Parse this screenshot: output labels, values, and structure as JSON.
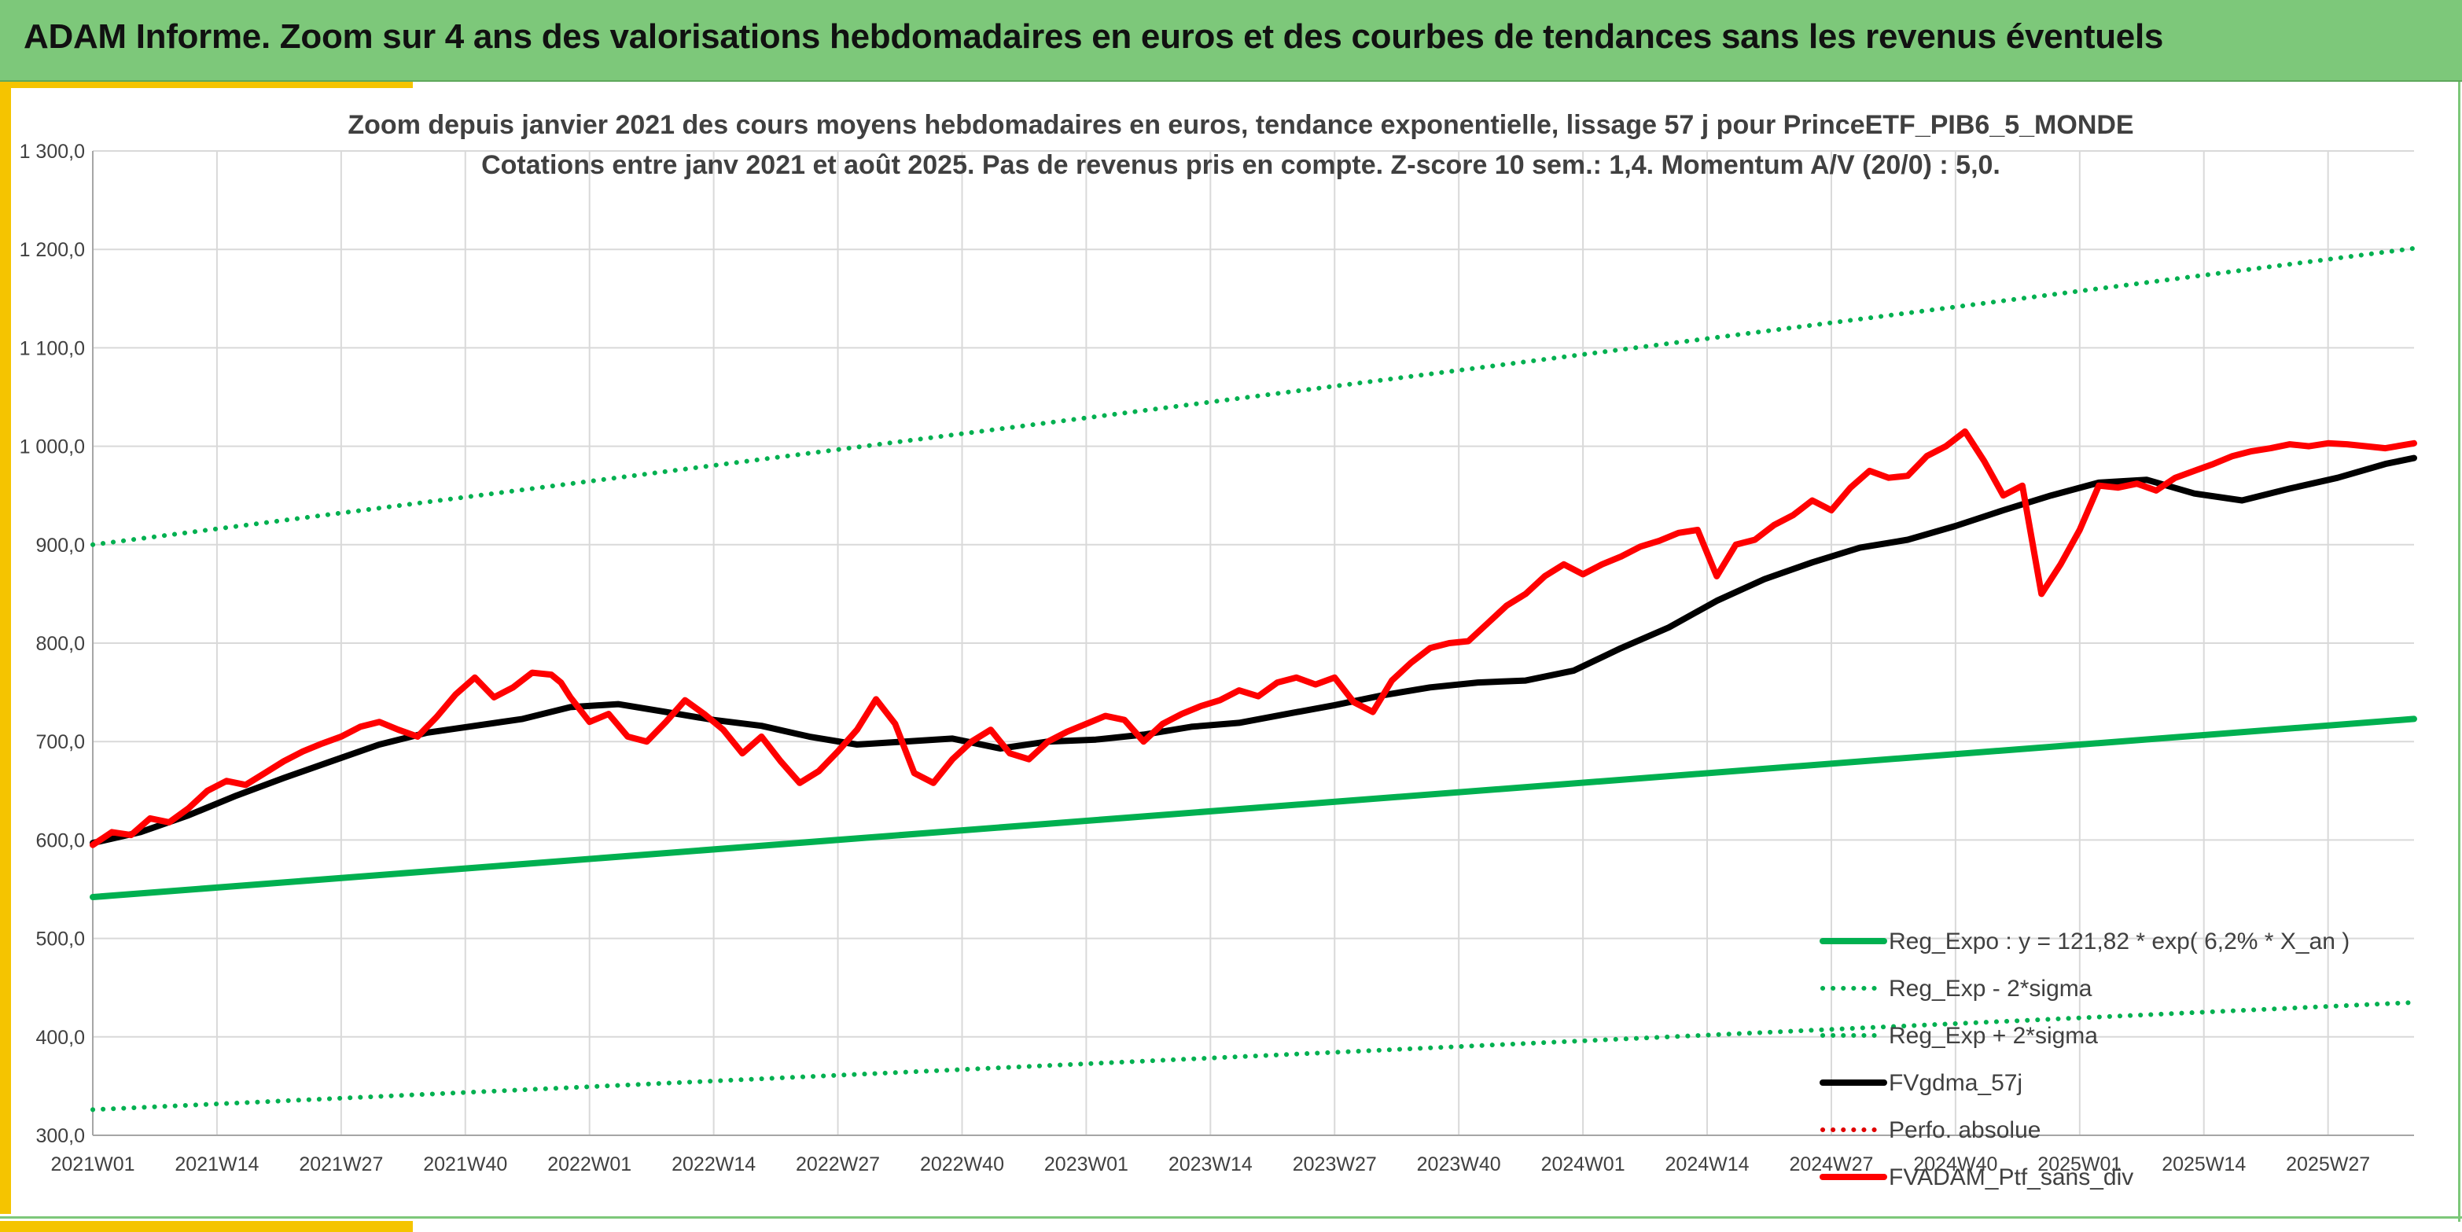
{
  "banner": {
    "title": "ADAM Informe. Zoom sur 4 ans des valorisations hebdomadaires en euros et des courbes de tendances sans les revenus éventuels"
  },
  "colors": {
    "banner_bg": "#7dc87a",
    "frame_accent": "#f5c400",
    "reg_expo": "#00b050",
    "fvgdma": "#000000",
    "perfo": "#e00000",
    "fvadam": "#ff0000",
    "grid": "#d9d9d9"
  },
  "chart_data": {
    "type": "line",
    "title": "Zoom depuis janvier 2021 des cours moyens hebdomadaires en euros, tendance exponentielle, lissage 57 j pour PrinceETF_PIB6_5_MONDE",
    "subtitle": "Cotations entre janv 2021 et août 2025. Pas de revenus pris en compte. Z-score 10 sem.: 1,4. Momentum A/V (20/0) : 5,0.",
    "xlabel": "",
    "ylabel": "",
    "ylim": [
      300,
      1300
    ],
    "yticks": [
      300,
      400,
      500,
      600,
      700,
      800,
      900,
      1000,
      1100,
      1200,
      1300
    ],
    "ytick_labels": [
      "300,0",
      "400,0",
      "500,0",
      "600,0",
      "700,0",
      "800,0",
      "900,0",
      "1 000,0",
      "1 100,0",
      "1 200,0",
      "1 300,0"
    ],
    "x_range": [
      0,
      243
    ],
    "xticks": [
      0,
      13,
      26,
      39,
      52,
      65,
      78,
      91,
      104,
      117,
      130,
      143,
      156,
      169,
      182,
      195,
      208,
      221,
      234
    ],
    "xtick_labels": [
      "2021W01",
      "2021W14",
      "2021W27",
      "2021W40",
      "2022W01",
      "2022W14",
      "2022W27",
      "2022W40",
      "2023W01",
      "2023W14",
      "2023W27",
      "2023W40",
      "2024W01",
      "2024W14",
      "2024W27",
      "2024W40",
      "2025W01",
      "2025W14",
      "2025W27"
    ],
    "grid": true,
    "legend_position": "bottom-right",
    "series": [
      {
        "name": "Reg_Expo : y = 121,82 * exp( 6,2% *  X_an )",
        "style": "solid-thick",
        "color": "#00b050",
        "x": [
          0,
          243
        ],
        "y": [
          542,
          723
        ]
      },
      {
        "name": "Reg_Exp - 2*sigma",
        "style": "dotted",
        "color": "#00b050",
        "x": [
          0,
          243
        ],
        "y": [
          326,
          435
        ]
      },
      {
        "name": "Reg_Exp + 2*sigma",
        "style": "dotted",
        "color": "#00b050",
        "x": [
          0,
          243
        ],
        "y": [
          900,
          1201
        ]
      },
      {
        "name": "FVgdma_57j",
        "style": "solid-thick",
        "color": "#000000",
        "x": [
          0,
          5,
          10,
          15,
          20,
          25,
          30,
          35,
          40,
          45,
          50,
          55,
          60,
          65,
          70,
          75,
          80,
          85,
          90,
          95,
          100,
          105,
          110,
          115,
          120,
          125,
          130,
          135,
          140,
          145,
          150,
          155,
          160,
          165,
          170,
          175,
          180,
          185,
          190,
          195,
          200,
          205,
          210,
          215,
          220,
          225,
          230,
          235,
          240,
          243
        ],
        "y": [
          597,
          608,
          625,
          645,
          663,
          680,
          697,
          709,
          716,
          723,
          735,
          738,
          730,
          722,
          716,
          705,
          697,
          700,
          703,
          693,
          700,
          702,
          707,
          715,
          719,
          728,
          737,
          747,
          755,
          760,
          762,
          772,
          795,
          816,
          843,
          865,
          882,
          897,
          905,
          919,
          935,
          950,
          963,
          966,
          952,
          945,
          957,
          968,
          982,
          988
        ]
      },
      {
        "name": "Perfo. absolue",
        "style": "dotted",
        "color": "#e00000",
        "x": [],
        "y": []
      },
      {
        "name": "FVADAM_Ptf_sans_div",
        "style": "solid-thick",
        "color": "#ff0000",
        "x": [
          0,
          2,
          4,
          6,
          8,
          10,
          12,
          14,
          16,
          18,
          20,
          22,
          24,
          26,
          28,
          30,
          32,
          34,
          36,
          38,
          40,
          42,
          44,
          46,
          48,
          49,
          50,
          52,
          54,
          56,
          58,
          60,
          62,
          64,
          66,
          68,
          70,
          72,
          74,
          76,
          78,
          80,
          82,
          84,
          86,
          88,
          90,
          92,
          94,
          96,
          98,
          100,
          102,
          104,
          106,
          108,
          110,
          112,
          114,
          116,
          118,
          120,
          122,
          124,
          126,
          128,
          130,
          132,
          134,
          136,
          138,
          140,
          142,
          144,
          146,
          148,
          150,
          152,
          154,
          156,
          158,
          160,
          162,
          164,
          166,
          168,
          170,
          172,
          174,
          176,
          178,
          180,
          182,
          184,
          186,
          188,
          190,
          192,
          194,
          196,
          198,
          200,
          202,
          204,
          206,
          208,
          210,
          212,
          214,
          216,
          218,
          220,
          222,
          224,
          226,
          228,
          230,
          232,
          234,
          236,
          238,
          240,
          243
        ],
        "y": [
          595,
          608,
          605,
          622,
          618,
          632,
          650,
          660,
          656,
          668,
          680,
          690,
          698,
          705,
          715,
          720,
          712,
          705,
          725,
          748,
          765,
          745,
          755,
          770,
          768,
          760,
          745,
          720,
          728,
          705,
          700,
          720,
          742,
          728,
          712,
          688,
          705,
          680,
          658,
          670,
          690,
          712,
          743,
          718,
          668,
          658,
          682,
          700,
          712,
          688,
          682,
          700,
          710,
          718,
          726,
          722,
          700,
          718,
          728,
          736,
          742,
          752,
          746,
          760,
          765,
          758,
          765,
          740,
          730,
          762,
          780,
          795,
          800,
          802,
          820,
          838,
          850,
          868,
          880,
          870,
          880,
          888,
          898,
          904,
          912,
          915,
          868,
          900,
          905,
          920,
          930,
          945,
          935,
          958,
          975,
          968,
          970,
          990,
          1000,
          1015,
          985,
          950,
          960,
          850,
          880,
          915,
          960,
          958,
          962,
          955,
          968,
          975,
          982,
          990,
          995,
          998,
          1002,
          1000,
          1003,
          1002,
          1000,
          998,
          1003
        ]
      }
    ]
  }
}
